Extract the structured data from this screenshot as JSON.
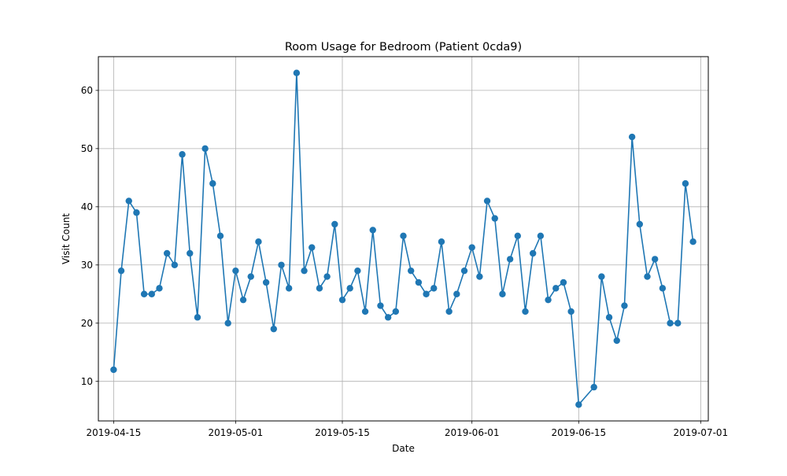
{
  "chart_data": {
    "type": "line",
    "title": "Room Usage for Bedroom (Patient 0cda9)",
    "xlabel": "Date",
    "ylabel": "Visit Count",
    "grid": true,
    "line_color": "#1f77b4",
    "marker": "circle",
    "xlim": [
      "2019-04-13",
      "2019-07-02"
    ],
    "ylim": [
      3.2,
      65.8
    ],
    "x_ticks": [
      "2019-04-15",
      "2019-05-01",
      "2019-05-15",
      "2019-06-01",
      "2019-06-15",
      "2019-07-01"
    ],
    "y_ticks": [
      10,
      20,
      30,
      40,
      50,
      60
    ],
    "series": [
      {
        "points": [
          [
            "2019-04-15",
            12
          ],
          [
            "2019-04-16",
            29
          ],
          [
            "2019-04-17",
            41
          ],
          [
            "2019-04-18",
            39
          ],
          [
            "2019-04-19",
            25
          ],
          [
            "2019-04-20",
            25
          ],
          [
            "2019-04-21",
            26
          ],
          [
            "2019-04-22",
            32
          ],
          [
            "2019-04-23",
            30
          ],
          [
            "2019-04-24",
            49
          ],
          [
            "2019-04-25",
            32
          ],
          [
            "2019-04-26",
            21
          ],
          [
            "2019-04-27",
            50
          ],
          [
            "2019-04-28",
            44
          ],
          [
            "2019-04-29",
            35
          ],
          [
            "2019-04-30",
            20
          ],
          [
            "2019-05-01",
            29
          ],
          [
            "2019-05-02",
            24
          ],
          [
            "2019-05-03",
            28
          ],
          [
            "2019-05-04",
            34
          ],
          [
            "2019-05-05",
            27
          ],
          [
            "2019-05-06",
            19
          ],
          [
            "2019-05-07",
            30
          ],
          [
            "2019-05-08",
            26
          ],
          [
            "2019-05-09",
            63
          ],
          [
            "2019-05-10",
            29
          ],
          [
            "2019-05-11",
            33
          ],
          [
            "2019-05-12",
            26
          ],
          [
            "2019-05-13",
            28
          ],
          [
            "2019-05-14",
            37
          ],
          [
            "2019-05-15",
            24
          ],
          [
            "2019-05-16",
            26
          ],
          [
            "2019-05-17",
            29
          ],
          [
            "2019-05-18",
            22
          ],
          [
            "2019-05-19",
            36
          ],
          [
            "2019-05-20",
            23
          ],
          [
            "2019-05-21",
            21
          ],
          [
            "2019-05-22",
            22
          ],
          [
            "2019-05-23",
            35
          ],
          [
            "2019-05-24",
            29
          ],
          [
            "2019-05-25",
            27
          ],
          [
            "2019-05-26",
            25
          ],
          [
            "2019-05-27",
            26
          ],
          [
            "2019-05-28",
            34
          ],
          [
            "2019-05-29",
            22
          ],
          [
            "2019-05-30",
            25
          ],
          [
            "2019-05-31",
            29
          ],
          [
            "2019-06-01",
            33
          ],
          [
            "2019-06-02",
            28
          ],
          [
            "2019-06-03",
            41
          ],
          [
            "2019-06-04",
            38
          ],
          [
            "2019-06-05",
            25
          ],
          [
            "2019-06-06",
            31
          ],
          [
            "2019-06-07",
            35
          ],
          [
            "2019-06-08",
            22
          ],
          [
            "2019-06-09",
            32
          ],
          [
            "2019-06-10",
            35
          ],
          [
            "2019-06-11",
            24
          ],
          [
            "2019-06-12",
            26
          ],
          [
            "2019-06-13",
            27
          ],
          [
            "2019-06-14",
            22
          ],
          [
            "2019-06-15",
            6
          ],
          [
            "2019-06-17",
            9
          ],
          [
            "2019-06-18",
            28
          ],
          [
            "2019-06-19",
            21
          ],
          [
            "2019-06-20",
            17
          ],
          [
            "2019-06-21",
            23
          ],
          [
            "2019-06-22",
            52
          ],
          [
            "2019-06-23",
            37
          ],
          [
            "2019-06-24",
            28
          ],
          [
            "2019-06-25",
            31
          ],
          [
            "2019-06-26",
            26
          ],
          [
            "2019-06-27",
            20
          ],
          [
            "2019-06-28",
            20
          ],
          [
            "2019-06-29",
            44
          ],
          [
            "2019-06-30",
            34
          ]
        ]
      }
    ]
  }
}
